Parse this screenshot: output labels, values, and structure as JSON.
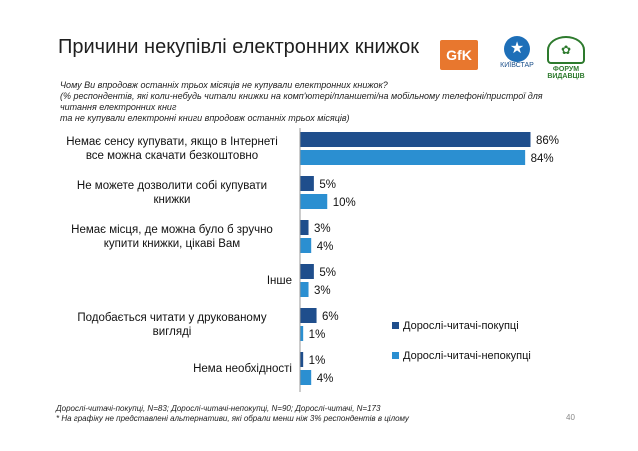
{
  "title": "Причини некупівлі електронних книжок",
  "subtitle_lines": [
    "Чому Ви впродовж останніх трьох місяців не купували електронних книжок?",
    "(% респондентів, які коли-небудь читали книжки на комп'ютері/планшеті/на мобільному телефоні/пристрої для",
    "читання електронних книг",
    "та не купували електронні книги впродовж останніх трьох місяців)"
  ],
  "logos": {
    "gfk": "GfK",
    "kyivstar": "КИЇВСТАР",
    "forum": "ФОРУМ ВИДАВЦІВ"
  },
  "colors": {
    "buyers": "#1f4e8c",
    "nonbuyers": "#2b8fd1",
    "axis": "#999999"
  },
  "chart_data": {
    "type": "bar",
    "orientation": "horizontal",
    "categories": [
      [
        "Немає сенсу купувати, якщо в Інтернеті",
        "все можна скачати безкоштовно"
      ],
      [
        "Не можете дозволити собі купувати",
        "книжки"
      ],
      [
        "Немає місця, де можна було б зручно",
        "купити книжки, цікаві Вам"
      ],
      [
        "Інше"
      ],
      [
        "Подобається читати у друкованому",
        "вигляді"
      ],
      [
        "Нема необхідності"
      ]
    ],
    "series": [
      {
        "name": "Дорослі-читачі-покупці",
        "values": [
          86,
          5,
          3,
          5,
          6,
          1
        ],
        "labels": [
          "86%",
          "5%",
          "3%",
          "5%",
          "6%",
          "1%"
        ]
      },
      {
        "name": "Дорослі-читачі-непокупці",
        "values": [
          84,
          10,
          4,
          3,
          1,
          4
        ],
        "labels": [
          "84%",
          "10%",
          "4%",
          "3%",
          "1%",
          "4%"
        ]
      }
    ],
    "xlim": [
      0,
      100
    ],
    "legend_position": "bottom-right"
  },
  "legend": {
    "buyers": "Дорослі-читачі-покупці",
    "nonbuyers": "Дорослі-читачі-непокупці"
  },
  "footnotes": [
    "Дорослі-читачі-покупці, N=83; Дорослі-читачі-непокупці, N=90; Дорослі-читачі, N=173",
    "* На графіку не представлені альтернативи, які обрали менш ніж 3% респондентів в цілому"
  ],
  "page_number": "40"
}
